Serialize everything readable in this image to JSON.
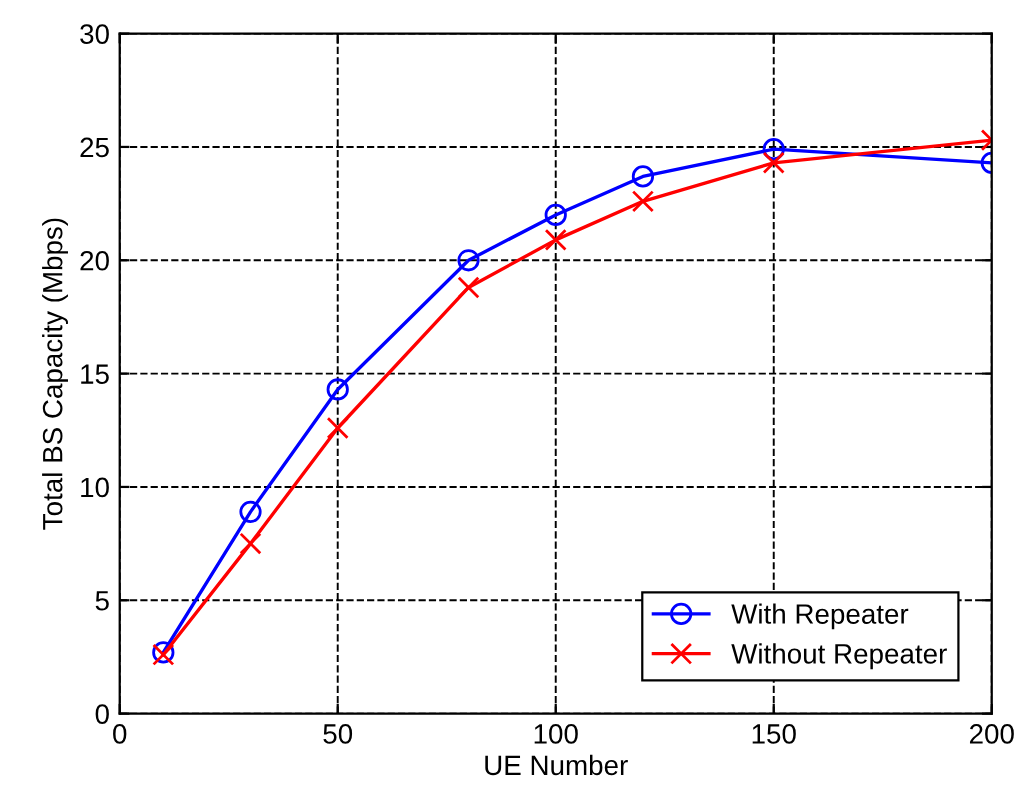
{
  "chart_data": {
    "type": "line",
    "xlabel": "UE Number",
    "ylabel": "Total BS Capacity (Mbps)",
    "x": [
      10,
      30,
      50,
      80,
      100,
      120,
      150,
      200
    ],
    "series": [
      {
        "name": "With Repeater",
        "color": "#0000ff",
        "marker": "circle",
        "values": [
          2.7,
          8.9,
          14.3,
          20.0,
          22.0,
          23.7,
          24.9,
          24.3
        ]
      },
      {
        "name": "Without Repeater",
        "color": "#ff0000",
        "marker": "cross",
        "values": [
          2.6,
          7.5,
          12.6,
          18.8,
          20.9,
          22.6,
          24.3,
          25.3
        ]
      }
    ],
    "xlim": [
      0,
      200
    ],
    "ylim": [
      0,
      30
    ],
    "xticks": [
      0,
      50,
      100,
      150,
      200
    ],
    "yticks": [
      0,
      5,
      10,
      15,
      20,
      25,
      30
    ],
    "grid": true,
    "legend": "bottom right",
    "line_style": "solid"
  }
}
